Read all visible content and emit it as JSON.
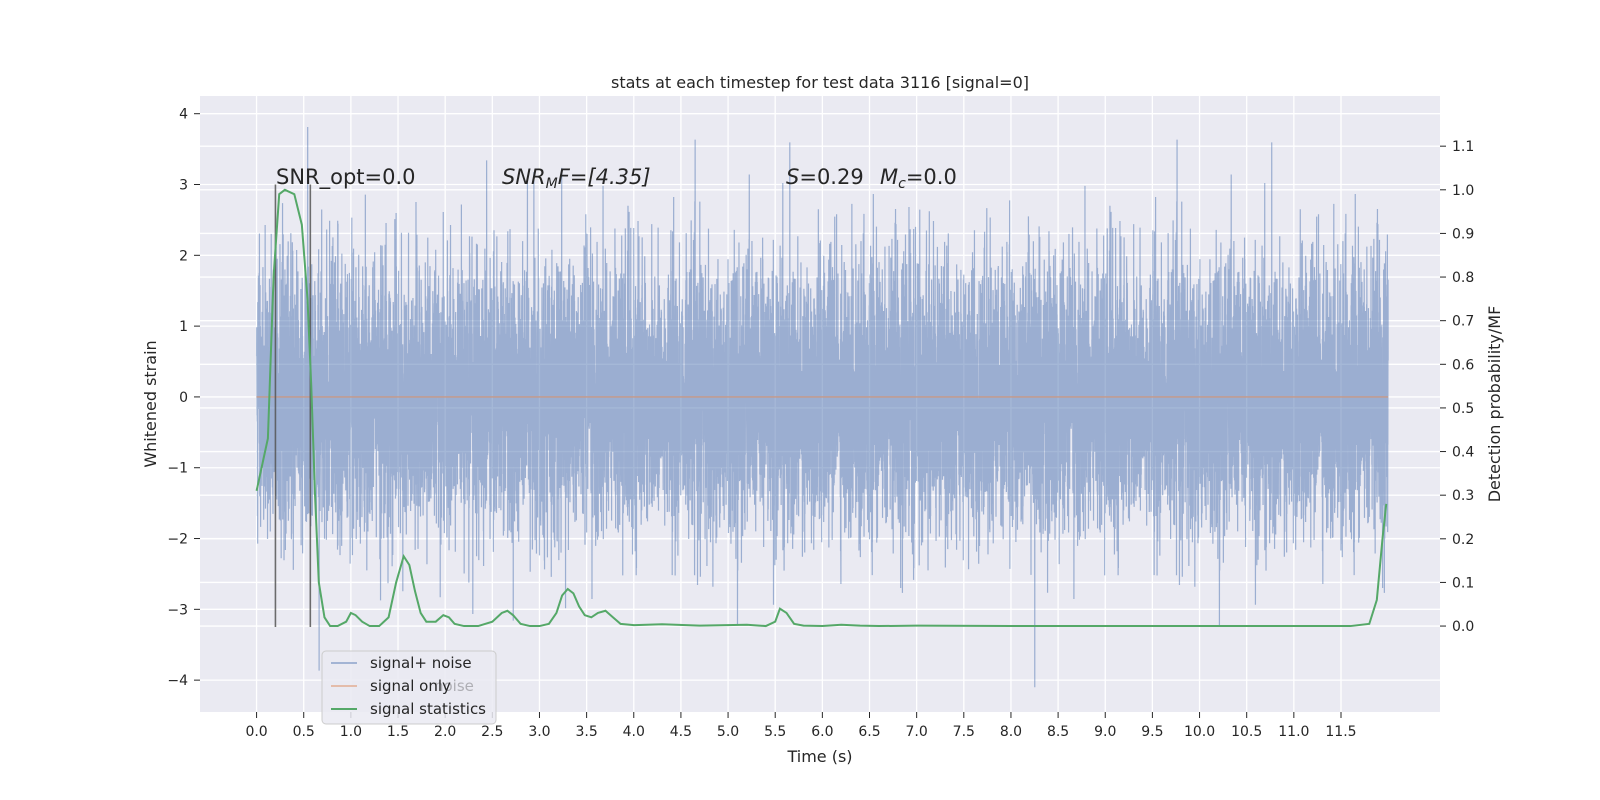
{
  "chart_data": {
    "type": "line",
    "title": "stats at each timestep for test data 3116 [signal=0]",
    "xlabel": "Time (s)",
    "ylabel": "Whitened strain",
    "y2label": "Detection probability/MF",
    "xlim": [
      -0.6,
      12.55
    ],
    "ylim": [
      -4.45,
      4.25
    ],
    "y2lim": [
      -0.197,
      1.215
    ],
    "x_ticks": [
      0.0,
      0.5,
      1.0,
      1.5,
      2.0,
      2.5,
      3.0,
      3.5,
      4.0,
      4.5,
      5.0,
      5.5,
      6.0,
      6.5,
      7.0,
      7.5,
      8.0,
      8.5,
      9.0,
      9.5,
      10.0,
      10.5,
      11.0,
      11.5
    ],
    "x_tick_labels": [
      "0.0",
      "0.5",
      "1.0",
      "1.5",
      "2.0",
      "2.5",
      "3.0",
      "3.5",
      "4.0",
      "4.5",
      "5.0",
      "5.5",
      "6.0",
      "6.5",
      "7.0",
      "7.5",
      "8.0",
      "8.5",
      "9.0",
      "9.5",
      "10.0",
      "10.5",
      "11.0",
      "11.5"
    ],
    "y_ticks": [
      -4,
      -3,
      -2,
      -1,
      0,
      1,
      2,
      3,
      4
    ],
    "y_tick_labels": [
      "−4",
      "−3",
      "−2",
      "−1",
      "0",
      "1",
      "2",
      "3",
      "4"
    ],
    "y2_ticks": [
      0.0,
      0.1,
      0.2,
      0.3,
      0.4,
      0.5,
      0.6,
      0.7,
      0.8,
      0.9,
      1.0,
      1.1
    ],
    "y2_tick_labels": [
      "0.0",
      "0.1",
      "0.2",
      "0.3",
      "0.4",
      "0.5",
      "0.6",
      "0.7",
      "0.8",
      "0.9",
      "1.0",
      "1.1"
    ],
    "grid": true,
    "legend_placement": "lower-left",
    "legend": [
      "signal+ noise",
      "signal only",
      "signal statistics"
    ],
    "legend_ghost_text": "noise",
    "annotations": {
      "snr_opt": "SNR_opt=0.0",
      "snr_mf_sym": "SNR",
      "snr_mf_sub": "M",
      "snr_mf_rest": "F=[4.35]",
      "s_sym": "S",
      "s_val": "=0.29",
      "mc_sym": "M",
      "mc_sub": "c",
      "mc_val": "=0.0"
    },
    "colors": {
      "background": "#eaeaf2",
      "grid": "#ffffff",
      "noise": "#4c72b0",
      "signal": "#dd8452",
      "stats": "#55a868",
      "marker": "#555555"
    },
    "series": [
      {
        "name": "signal+ noise",
        "x_range": [
          0.0,
          12.0
        ],
        "n_samples": 12288,
        "std": 0.95,
        "min": -4.1,
        "max": 3.9
      },
      {
        "name": "signal only",
        "x": [
          0.0,
          12.0
        ],
        "y": [
          0.0,
          0.0
        ]
      },
      {
        "name": "signal statistics",
        "axis": "right",
        "x": [
          0.0,
          0.06,
          0.12,
          0.18,
          0.24,
          0.3,
          0.4,
          0.48,
          0.54,
          0.58,
          0.62,
          0.66,
          0.72,
          0.78,
          0.86,
          0.95,
          1.0,
          1.05,
          1.12,
          1.2,
          1.3,
          1.4,
          1.48,
          1.56,
          1.62,
          1.68,
          1.74,
          1.8,
          1.9,
          1.98,
          2.04,
          2.1,
          2.2,
          2.35,
          2.5,
          2.6,
          2.66,
          2.72,
          2.8,
          2.9,
          3.0,
          3.1,
          3.18,
          3.24,
          3.3,
          3.36,
          3.42,
          3.48,
          3.55,
          3.62,
          3.7,
          3.78,
          3.86,
          4.0,
          4.3,
          4.7,
          5.2,
          5.4,
          5.5,
          5.55,
          5.62,
          5.7,
          5.8,
          6.0,
          6.2,
          6.4,
          6.6,
          7.0,
          8.0,
          9.0,
          10.0,
          11.0,
          11.3,
          11.6,
          11.8,
          11.88,
          11.94,
          11.98
        ],
        "y": [
          0.31,
          0.37,
          0.43,
          0.8,
          0.99,
          1.0,
          0.99,
          0.92,
          0.75,
          0.55,
          0.3,
          0.1,
          0.02,
          0.0,
          0.0,
          0.01,
          0.03,
          0.025,
          0.01,
          0.0,
          0.0,
          0.02,
          0.1,
          0.16,
          0.14,
          0.08,
          0.03,
          0.01,
          0.01,
          0.025,
          0.02,
          0.005,
          0.0,
          0.0,
          0.01,
          0.03,
          0.035,
          0.025,
          0.005,
          0.0,
          0.0,
          0.005,
          0.03,
          0.07,
          0.085,
          0.075,
          0.045,
          0.025,
          0.02,
          0.03,
          0.035,
          0.02,
          0.005,
          0.002,
          0.004,
          0.001,
          0.003,
          0.0,
          0.01,
          0.04,
          0.03,
          0.005,
          0.001,
          0.0,
          0.003,
          0.001,
          0.0,
          0.001,
          0.0,
          0.0,
          0.0,
          0.0,
          0.0,
          0.0,
          0.005,
          0.06,
          0.2,
          0.28
        ]
      }
    ],
    "vertical_markers": [
      {
        "x": 0.2,
        "y_top": 3.0,
        "y_bottom": -3.25
      },
      {
        "x": 0.57,
        "y_top": 3.0,
        "y_bottom": -3.25
      }
    ]
  }
}
